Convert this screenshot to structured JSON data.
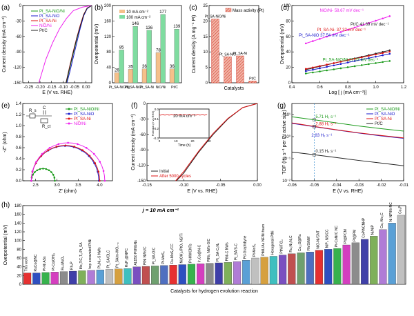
{
  "colors": {
    "pt_sa_nio_ni": "#1a9a1a",
    "pt_sa_nio": "#1a1acc",
    "pt_sa_ni": "#dd1111",
    "nio_ni": "#ee22ee",
    "ptc": "#222222",
    "bar10": "#f5c08a",
    "bar100": "#7fdca0",
    "hatch": "#d23a2a"
  },
  "chart_data": [
    {
      "panel": "(a)",
      "type": "line",
      "xlabel": "E (V vs. RHE)",
      "ylabel": "Current density (mA cm⁻²)",
      "xlim": [
        -0.3,
        0.0
      ],
      "ylim": [
        -150,
        0
      ],
      "xticks": [
        "-0.25",
        "-0.20",
        "-0.15",
        "-0.10",
        "-0.05",
        "0.00"
      ],
      "yticks": [
        "0",
        "-30",
        "-60",
        "-90",
        "-120",
        "-150"
      ],
      "legend": [
        "Pt_SA-NiO/Ni",
        "Pt_SA-NiO",
        "Pt_SA-Ni",
        "NiO/Ni",
        "Pt/C"
      ],
      "series": [
        {
          "name": "Pt_SA-NiO/Ni",
          "color": "pt_sa_nio_ni",
          "x": [
            0,
            -0.02,
            -0.035,
            -0.05,
            -0.065,
            -0.08,
            -0.095,
            -0.11
          ],
          "y": [
            0,
            -5,
            -18,
            -40,
            -65,
            -92,
            -120,
            -150
          ]
        },
        {
          "name": "Pt_SA-NiO",
          "color": "pt_sa_nio",
          "x": [
            0,
            -0.02,
            -0.035,
            -0.05,
            -0.065,
            -0.08,
            -0.095,
            -0.108
          ],
          "y": [
            0,
            -6,
            -20,
            -44,
            -72,
            -100,
            -128,
            -150
          ]
        },
        {
          "name": "Pt_SA-Ni",
          "color": "pt_sa_ni",
          "x": [
            0,
            -0.02,
            -0.035,
            -0.05,
            -0.065,
            -0.08,
            -0.095,
            -0.112
          ],
          "y": [
            0,
            -5,
            -17,
            -38,
            -62,
            -88,
            -116,
            -150
          ]
        },
        {
          "name": "NiO/Ni",
          "color": "nio_ni",
          "x": [
            0,
            -0.04,
            -0.08,
            -0.11,
            -0.14,
            -0.17,
            -0.2,
            -0.23
          ],
          "y": [
            0,
            -3,
            -10,
            -25,
            -45,
            -72,
            -105,
            -150
          ]
        },
        {
          "name": "Pt/C",
          "color": "ptc",
          "x": [
            0,
            -0.02,
            -0.035,
            -0.05,
            -0.065,
            -0.08,
            -0.095,
            -0.112
          ],
          "y": [
            0,
            -5,
            -18,
            -40,
            -63,
            -90,
            -118,
            -150
          ]
        }
      ]
    },
    {
      "panel": "(b)",
      "type": "bar",
      "ylabel": "Overpotential (mV)",
      "ylim": [
        0,
        200
      ],
      "yticks": [
        "0",
        "40",
        "80",
        "120",
        "160",
        "200"
      ],
      "categories": [
        "Pt_SA-NiO/Ni",
        "Pt_SA-NiO",
        "Pt_SA-Ni",
        "NiO/Ni",
        "Pt/C"
      ],
      "legend": [
        "10 mA cm⁻²",
        "100 mA cm⁻²"
      ],
      "series": [
        {
          "name": "10 mA cm⁻²",
          "values": [
            26,
            35,
            36,
            78,
            36
          ]
        },
        {
          "name": "100 mA cm⁻²",
          "values": [
            85,
            146,
            136,
            177,
            139
          ]
        }
      ]
    },
    {
      "panel": "(c)",
      "type": "bar",
      "xlabel": "Catalysts",
      "ylabel": "Current density (A mg⁻¹ Pt)",
      "ylim": [
        0,
        25
      ],
      "yticks": [
        "0",
        "5",
        "10",
        "15",
        "20",
        "25"
      ],
      "legend": [
        "Mass activity (Pt)"
      ],
      "categories": [
        "Pt_SA-NiO/Ni",
        "Pt_SA-NiO",
        "Pt_SA-Ni",
        "Pt/C"
      ],
      "values": [
        20.6,
        8.4,
        8.7,
        0.6
      ]
    },
    {
      "panel": "(d)",
      "type": "scatter",
      "xlabel": "Log [ j (mA cm⁻²)]",
      "ylabel": "Overpotential (mV)",
      "xlim": [
        0.4,
        1.2
      ],
      "ylim": [
        0,
        100
      ],
      "xticks": [
        "0.4",
        "0.6",
        "0.8",
        "1.0",
        "1.2"
      ],
      "yticks": [
        "0",
        "20",
        "40",
        "60",
        "80",
        "100"
      ],
      "series": [
        {
          "name": "NiO/Ni",
          "label": "NiO/Ni- 58.67 mV dec⁻¹",
          "color": "nio_ni",
          "x0": 0.5,
          "y0": 51,
          "slope": 58.67
        },
        {
          "name": "Pt/C",
          "label": "Pt/C  41.69 mV dec⁻¹",
          "color": "ptc",
          "x0": 0.5,
          "y0": 17,
          "slope": 41.69
        },
        {
          "name": "Pt_SA-Ni",
          "label": "Pt_SA-Ni- 37.32 mV dec⁻¹",
          "color": "pt_sa_ni",
          "x0": 0.5,
          "y0": 18,
          "slope": 37.32
        },
        {
          "name": "Pt_SA-NiO",
          "label": "Pt_SA-NiO  37.54 mV dec⁻¹",
          "color": "pt_sa_nio",
          "x0": 0.5,
          "y0": 15,
          "slope": 37.54
        },
        {
          "name": "Pt_SA-NiO/Ni",
          "label": "Pt_SA-NiO/Ni  27.07 mV dec⁻¹",
          "color": "pt_sa_nio_ni",
          "x0": 0.5,
          "y0": 12,
          "slope": 27.07
        }
      ]
    },
    {
      "panel": "(e)",
      "type": "scatter",
      "xlabel": "Z' (ohm)",
      "ylabel": "-Z'' (ohm)",
      "xlim": [
        2.2,
        4.3
      ],
      "ylim": [
        0,
        1.4
      ],
      "xticks": [
        "2.5",
        "3.0",
        "3.5",
        "4.0"
      ],
      "yticks": [
        "0.0",
        "0.2",
        "0.4",
        "0.6",
        "0.8",
        "1.0",
        "1.2",
        "1.4"
      ],
      "circuit": {
        "rs": "R_s",
        "c": "C",
        "rct": "R_ct"
      },
      "legend": [
        "Pt_SA-NiO/Ni",
        "Pt_SA-NiO",
        "Pt_SA-Ni",
        "NiO/Ni"
      ],
      "series": [
        {
          "name": "Pt_SA-NiO/Ni",
          "color": "pt_sa_nio_ni",
          "start": 2.4,
          "end": 2.95
        },
        {
          "name": "Pt_SA-NiO",
          "color": "pt_sa_nio",
          "start": 2.4,
          "end": 3.98
        },
        {
          "name": "Pt_SA-Ni",
          "color": "pt_sa_ni",
          "start": 2.4,
          "end": 4.0
        },
        {
          "name": "NiO/Ni",
          "color": "nio_ni",
          "start": 2.4,
          "end": 4.12
        }
      ]
    },
    {
      "panel": "(f)",
      "type": "line",
      "xlabel": "E (V vs. RHE)",
      "ylabel": "Current density (mA cm⁻²)",
      "xlim": [
        -0.15,
        0.0
      ],
      "ylim": [
        -150,
        0
      ],
      "xticks": [
        "-0.15",
        "-0.10",
        "-0.05",
        "0.00"
      ],
      "yticks": [
        "0",
        "-30",
        "-60",
        "-90",
        "-120",
        "-150"
      ],
      "legend": [
        "Initial",
        "After 5000 cycles"
      ],
      "inset": {
        "xlabel": "Time (h)",
        "ylabel": "Potential (V vs RHE)",
        "label": "20 mA cm⁻²",
        "xticks": [
          "0",
          "10",
          "20",
          "30"
        ],
        "yticks": [
          "0.0",
          "-0.1",
          "-0.2",
          "-0.3"
        ],
        "value": -0.06
      },
      "series": [
        {
          "name": "Initial",
          "color": "ptc",
          "x": [
            0,
            -0.02,
            -0.04,
            -0.06,
            -0.08,
            -0.1,
            -0.11
          ],
          "y": [
            0,
            -8,
            -30,
            -60,
            -95,
            -135,
            -150
          ]
        },
        {
          "name": "After 5000 cycles",
          "color": "pt_sa_ni",
          "x": [
            0,
            -0.02,
            -0.04,
            -0.06,
            -0.08,
            -0.1,
            -0.111
          ],
          "y": [
            0,
            -8,
            -29,
            -58,
            -93,
            -132,
            -150
          ]
        }
      ]
    },
    {
      "panel": "(g)",
      "type": "line",
      "xlabel": "E (V vs. RHE)",
      "ylabel": "TOF (H₂ s⁻¹ per Pt active site)",
      "xlim": [
        -0.06,
        -0.01
      ],
      "xticks": [
        "-0.06",
        "-0.05",
        "-0.04",
        "-0.03",
        "-0.02",
        "-0.01"
      ],
      "ytick_labels": [
        "10⁻²",
        "10⁻¹",
        "10⁰",
        "10¹"
      ],
      "legend": [
        "Pt_SA-NiO/Ni",
        "Pt_SA-NiO",
        "Pt_SA-Ni",
        "Pt/C"
      ],
      "annotations": [
        {
          "text": "5.71 H₂ s⁻¹",
          "color": "pt_sa_nio_ni"
        },
        {
          "text": "2.88 H₂ s⁻¹",
          "color": "pt_sa_ni"
        },
        {
          "text": "2.83 H₂ s⁻¹",
          "color": "pt_sa_nio"
        },
        {
          "text": "0.15 H₂ s⁻¹",
          "color": "ptc"
        }
      ],
      "series": [
        {
          "name": "Pt_SA-NiO/Ni",
          "color": "pt_sa_nio_ni",
          "logs": [
            0.9,
            0.76,
            0.62,
            0.48,
            0.36,
            0.25
          ]
        },
        {
          "name": "Pt_SA-NiO",
          "color": "pt_sa_nio",
          "logs": [
            0.6,
            0.45,
            0.3,
            0.16,
            0.03,
            -0.08
          ]
        },
        {
          "name": "Pt_SA-Ni",
          "color": "pt_sa_ni",
          "logs": [
            0.62,
            0.46,
            0.31,
            0.17,
            0.05,
            -0.06
          ]
        },
        {
          "name": "Pt/C",
          "color": "ptc",
          "logs": [
            -0.7,
            -0.82,
            -0.95,
            -1.08,
            -1.2,
            -1.32
          ]
        }
      ]
    },
    {
      "panel": "(h)",
      "type": "bar",
      "title": "j = 10 mA cm⁻²",
      "xlabel": "Catalysts for hydrogen evolution reaction",
      "ylabel": "Overpotential (mV)",
      "ylim": [
        0,
        180
      ],
      "yticks": [
        "0",
        "20",
        "40",
        "60",
        "80",
        "100",
        "120",
        "140",
        "160",
        "180"
      ],
      "categories": [
        "This work",
        "RuCo@NC",
        "Pt-Ni ASs",
        "Pt-Co(OH)₂",
        "Ru-MoO₂",
        "Rh₂P",
        "Mo₂TiC₂Tₓ-Pt_SA",
        "hcp excavated PtNi",
        "Pt₃Ni₂-S NWs",
        "Pt_SA/OLC",
        "Pt_SA/m-WO₃₋ₓ",
        "RuP₂@NPC",
        "ALD50 Pt/NGNs",
        "PtNi NWs/C",
        "Pt_SA-O/C",
        "Pt-MoS₂",
        "Ru-MoS₂/CC",
        "Ni(OH)₂/PtO₂ NS/Ti",
        "Pt-MWCNTs",
        "Ir₃Co@N-C",
        "PtNi₃ NWs-S/C",
        "Pt_SA-C₃N₄",
        "PtNi-C NWs",
        "Pt_SA/S-C",
        "Pd-Graphdiyne",
        "Pt-MoS₂",
        "PtML/Au NF/Ni foam",
        "Hexagonal-PtNi",
        "PtNi/TiO₂",
        "Ru₂Ni₂N₆C",
        "Cu₂₂S@Ru",
        "Rh/SiNW",
        "NiO-Ni/CNT",
        "NiP₂ NS/CC",
        "Pt-CoNi/C NC",
        "Pt@PCM",
        "Pt@PM",
        "CoP/NCNHP",
        "Ni/NiP",
        "Co₆-Mo₂C",
        "Ni NP/Ni-NC",
        "Co₂P"
      ],
      "values": [
        26,
        26,
        27,
        28,
        29,
        30,
        31,
        32,
        33,
        34,
        35,
        36,
        40,
        41,
        42,
        43,
        44,
        45,
        46,
        47,
        48,
        49,
        50,
        52,
        55,
        60,
        62,
        64,
        67,
        70,
        72,
        74,
        78,
        80,
        82,
        90,
        95,
        103,
        110,
        125,
        140,
        158
      ]
    }
  ]
}
